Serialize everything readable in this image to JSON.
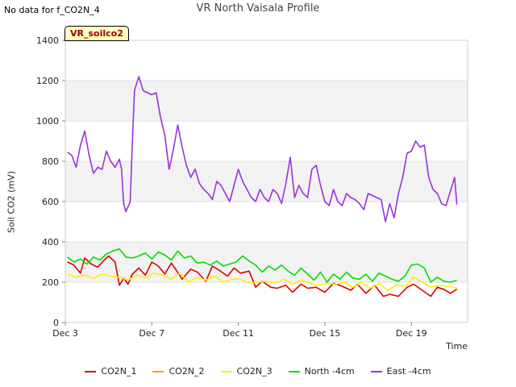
{
  "header": {
    "nodata_text": "No data for f_CO2N_4",
    "title": "VR North Vaisala Profile",
    "site_tag": "VR_soilco2"
  },
  "chart_data": {
    "type": "line",
    "title": "VR North Vaisala Profile",
    "xlabel": "Time",
    "ylabel": "Soil CO2 (mV)",
    "ylim": [
      0,
      1400
    ],
    "yticks": [
      0,
      200,
      400,
      600,
      800,
      1000,
      1200,
      1400
    ],
    "xlim_day": [
      3,
      21.6
    ],
    "xticks": [
      {
        "day": 3,
        "label": "Dec 3"
      },
      {
        "day": 7,
        "label": "Dec 7"
      },
      {
        "day": 11,
        "label": "Dec 11"
      },
      {
        "day": 15,
        "label": "Dec 15"
      },
      {
        "day": 19,
        "label": "Dec 19"
      }
    ],
    "grid": true,
    "legend_position": "bottom",
    "series": [
      {
        "name": "CO2N_1",
        "color": "#dd0000",
        "x": [
          3.1,
          3.4,
          3.7,
          3.9,
          4.2,
          4.5,
          4.8,
          5.0,
          5.3,
          5.5,
          5.7,
          5.9,
          6.1,
          6.4,
          6.7,
          7.0,
          7.3,
          7.6,
          7.9,
          8.1,
          8.4,
          8.8,
          9.1,
          9.5,
          9.8,
          10.1,
          10.5,
          10.8,
          11.1,
          11.5,
          11.8,
          12.1,
          12.5,
          12.8,
          13.2,
          13.5,
          13.9,
          14.2,
          14.6,
          15.0,
          15.4,
          15.8,
          16.2,
          16.5,
          16.9,
          17.3,
          17.7,
          18.0,
          18.4,
          18.8,
          19.1,
          19.5,
          19.9,
          20.2,
          20.5,
          20.8,
          21.1
        ],
        "y": [
          300,
          285,
          245,
          320,
          290,
          275,
          310,
          330,
          300,
          185,
          220,
          190,
          240,
          270,
          235,
          300,
          280,
          240,
          295,
          265,
          215,
          265,
          250,
          205,
          280,
          260,
          230,
          270,
          245,
          255,
          175,
          205,
          175,
          170,
          185,
          150,
          190,
          170,
          175,
          150,
          195,
          180,
          160,
          190,
          145,
          185,
          130,
          140,
          130,
          175,
          190,
          160,
          130,
          175,
          165,
          145,
          165
        ]
      },
      {
        "name": "CO2N_2",
        "color": "#ff9900",
        "x": [],
        "y": []
      },
      {
        "name": "CO2N_3",
        "color": "#ffee00",
        "x": [
          3.1,
          3.5,
          3.9,
          4.3,
          4.7,
          5.1,
          5.5,
          5.9,
          6.3,
          6.7,
          7.1,
          7.5,
          7.9,
          8.3,
          8.7,
          9.1,
          9.5,
          9.9,
          10.3,
          10.7,
          11.1,
          11.5,
          11.9,
          12.3,
          12.7,
          13.1,
          13.5,
          13.9,
          14.3,
          14.7,
          15.1,
          15.5,
          15.9,
          16.3,
          16.7,
          17.1,
          17.5,
          17.9,
          18.3,
          18.7,
          19.1,
          19.5,
          19.9,
          20.3,
          20.7,
          21.1
        ],
        "y": [
          240,
          225,
          235,
          220,
          240,
          230,
          225,
          210,
          235,
          220,
          245,
          235,
          215,
          245,
          200,
          225,
          210,
          230,
          200,
          215,
          215,
          195,
          200,
          205,
          195,
          215,
          190,
          210,
          195,
          185,
          195,
          190,
          200,
          175,
          200,
          170,
          195,
          160,
          185,
          180,
          225,
          200,
          175,
          185,
          180,
          170
        ]
      },
      {
        "name": "North -4cm",
        "color": "#00dd00",
        "x": [
          3.1,
          3.4,
          3.7,
          4.0,
          4.3,
          4.6,
          4.9,
          5.2,
          5.5,
          5.8,
          6.1,
          6.4,
          6.7,
          7.0,
          7.3,
          7.6,
          7.9,
          8.2,
          8.5,
          8.8,
          9.1,
          9.4,
          9.7,
          10.0,
          10.3,
          10.6,
          10.9,
          11.2,
          11.5,
          11.8,
          12.1,
          12.4,
          12.7,
          13.0,
          13.3,
          13.6,
          13.9,
          14.2,
          14.5,
          14.8,
          15.1,
          15.4,
          15.7,
          16.0,
          16.3,
          16.6,
          16.9,
          17.2,
          17.5,
          17.8,
          18.1,
          18.4,
          18.7,
          19.0,
          19.3,
          19.6,
          19.9,
          20.2,
          20.5,
          20.8,
          21.1
        ],
        "y": [
          325,
          300,
          315,
          290,
          325,
          310,
          340,
          355,
          365,
          325,
          320,
          330,
          345,
          315,
          350,
          335,
          310,
          355,
          320,
          330,
          295,
          300,
          285,
          305,
          280,
          290,
          300,
          330,
          305,
          285,
          250,
          280,
          260,
          285,
          255,
          235,
          270,
          240,
          210,
          250,
          200,
          240,
          215,
          250,
          220,
          215,
          240,
          205,
          245,
          230,
          215,
          205,
          230,
          285,
          290,
          270,
          200,
          225,
          205,
          200,
          210
        ]
      },
      {
        "name": "East -4cm",
        "color": "#9933dd",
        "x": [
          3.1,
          3.3,
          3.5,
          3.7,
          3.9,
          4.1,
          4.3,
          4.5,
          4.7,
          4.9,
          5.1,
          5.3,
          5.5,
          5.6,
          5.7,
          5.8,
          6.0,
          6.1,
          6.2,
          6.4,
          6.6,
          6.8,
          7.0,
          7.2,
          7.4,
          7.6,
          7.8,
          8.0,
          8.2,
          8.4,
          8.6,
          8.8,
          9.0,
          9.2,
          9.4,
          9.6,
          9.8,
          10.0,
          10.2,
          10.4,
          10.6,
          10.8,
          11.0,
          11.2,
          11.4,
          11.6,
          11.8,
          12.0,
          12.2,
          12.4,
          12.6,
          12.8,
          13.0,
          13.2,
          13.4,
          13.6,
          13.8,
          14.0,
          14.2,
          14.4,
          14.6,
          14.8,
          15.0,
          15.2,
          15.4,
          15.6,
          15.8,
          16.0,
          16.2,
          16.4,
          16.6,
          16.8,
          17.0,
          17.2,
          17.4,
          17.6,
          17.8,
          18.0,
          18.2,
          18.4,
          18.6,
          18.8,
          19.0,
          19.2,
          19.4,
          19.6,
          19.8,
          20.0,
          20.2,
          20.4,
          20.6,
          20.8,
          21.0,
          21.1
        ],
        "y": [
          845,
          830,
          770,
          880,
          950,
          830,
          740,
          770,
          760,
          850,
          800,
          770,
          810,
          760,
          590,
          550,
          600,
          900,
          1150,
          1220,
          1150,
          1140,
          1130,
          1140,
          1020,
          930,
          760,
          860,
          980,
          870,
          780,
          720,
          760,
          690,
          660,
          640,
          610,
          700,
          680,
          640,
          600,
          680,
          760,
          700,
          660,
          620,
          600,
          660,
          620,
          600,
          660,
          640,
          590,
          690,
          820,
          620,
          680,
          640,
          620,
          760,
          780,
          680,
          600,
          580,
          660,
          600,
          580,
          640,
          620,
          610,
          590,
          560,
          640,
          630,
          620,
          610,
          500,
          590,
          520,
          640,
          720,
          840,
          850,
          900,
          870,
          880,
          720,
          660,
          640,
          590,
          580,
          650,
          720,
          585
        ]
      }
    ]
  }
}
